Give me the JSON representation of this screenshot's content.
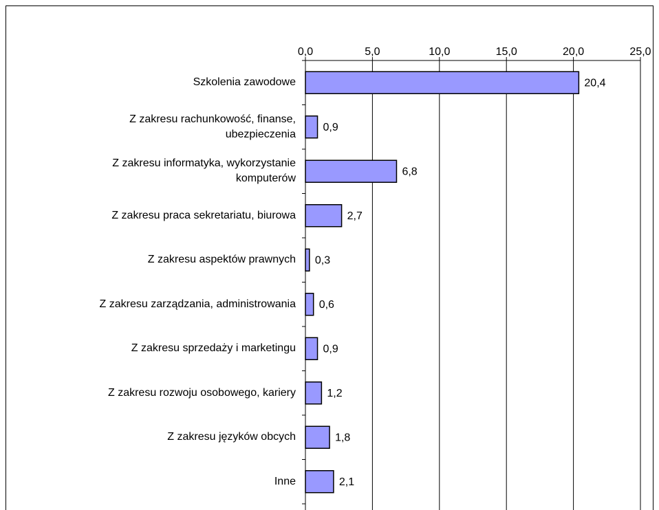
{
  "chart_data": {
    "type": "bar",
    "orientation": "horizontal",
    "categories": [
      "Szkolenia zawodowe",
      "Z zakresu rachunkowość, finanse,\nubezpieczenia",
      "Z zakresu informatyka, wykorzystanie\nkomputerów",
      "Z zakresu praca sekretariatu, biurowa",
      "Z zakresu aspektów prawnych",
      "Z zakresu zarządzania, administrowania",
      "Z zakresu sprzedaży i marketingu",
      "Z zakresu rozwoju osobowego, kariery",
      "Z zakresu języków obcych",
      "Inne"
    ],
    "values": [
      20.4,
      0.9,
      6.8,
      2.7,
      0.3,
      0.6,
      0.9,
      1.2,
      1.8,
      2.1
    ],
    "value_labels": [
      "20,4",
      "0,9",
      "6,8",
      "2,7",
      "0,3",
      "0,6",
      "0,9",
      "1,2",
      "1,8",
      "2,1"
    ],
    "color": "#9999ff",
    "xlim": [
      0,
      25
    ],
    "xticks": [
      {
        "value": 0,
        "label": "0,0"
      },
      {
        "value": 5,
        "label": "5,0"
      },
      {
        "value": 10,
        "label": "10,0"
      },
      {
        "value": 15,
        "label": "15,0"
      },
      {
        "value": 20,
        "label": "20,0"
      },
      {
        "value": 25,
        "label": "25,0"
      }
    ],
    "grid": true
  }
}
